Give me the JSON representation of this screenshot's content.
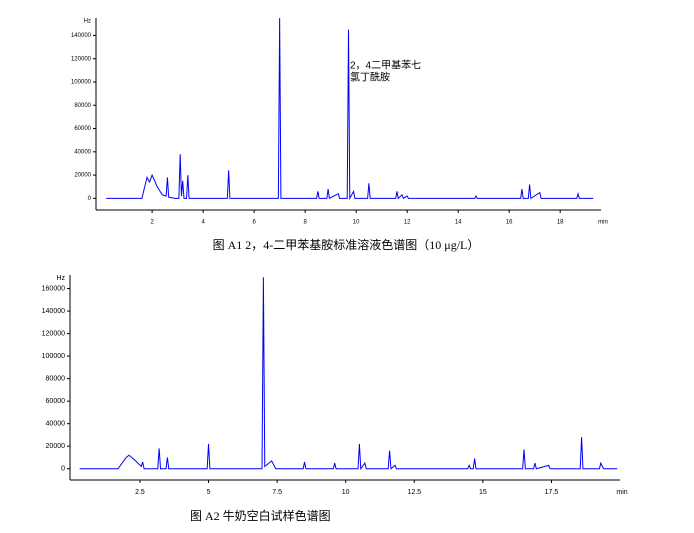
{
  "chart_data": [
    {
      "type": "line",
      "y_label": "Hz",
      "x_label": "min",
      "caption": "图 A1 2，4-二甲苯基胺标准溶液色谱图（10 μg/L）",
      "annotation": [
        "2，4二甲基苯七",
        "氯丁酰胺"
      ],
      "xlim": [
        -0.2,
        19.6
      ],
      "ylim": [
        -10000,
        155000
      ],
      "xticks": [
        2,
        4,
        6,
        8,
        10,
        12,
        14,
        16,
        18
      ],
      "yticks": [
        0,
        20000,
        40000,
        60000,
        80000,
        100000,
        120000,
        140000
      ],
      "x": [
        0.2,
        1.6,
        1.8,
        1.9,
        2.0,
        2.2,
        2.4,
        2.55,
        2.6,
        2.65,
        2.9,
        3.05,
        3.1,
        3.15,
        3.2,
        3.25,
        3.35,
        3.4,
        3.45,
        4.95,
        5.0,
        5.05,
        6.95,
        7.0,
        7.05,
        8.45,
        8.5,
        8.55,
        8.85,
        8.9,
        8.95,
        9.3,
        9.35,
        9.65,
        9.7,
        9.75,
        9.9,
        9.95,
        10.45,
        10.5,
        10.55,
        11.55,
        11.6,
        11.65,
        11.8,
        11.85,
        12.0,
        12.05,
        14.65,
        14.7,
        14.75,
        16.45,
        16.5,
        16.55,
        16.75,
        16.8,
        16.85,
        17.2,
        17.25,
        18.65,
        18.7,
        18.75,
        19.3
      ],
      "series": [
        {
          "color": "#0000ff",
          "values": [
            0,
            0,
            18000,
            14000,
            20000,
            10000,
            3000,
            2000,
            18000,
            1000,
            0,
            0,
            38000,
            2000,
            15000,
            0,
            0,
            20000,
            0,
            0,
            24000,
            0,
            0,
            155000,
            0,
            0,
            6000,
            0,
            0,
            8000,
            0,
            4000,
            0,
            0,
            145000,
            0,
            6000,
            0,
            0,
            13000,
            0,
            0,
            6000,
            0,
            3000,
            0,
            2000,
            0,
            0,
            2000,
            0,
            0,
            8000,
            0,
            0,
            12000,
            0,
            5000,
            0,
            0,
            4000,
            0,
            0
          ]
        }
      ]
    },
    {
      "type": "line",
      "y_label": "Hz",
      "x_label": "min",
      "caption": "图 A2 牛奶空白试样色谱图",
      "xlim": [
        -0.05,
        20
      ],
      "ylim": [
        -10000,
        172000
      ],
      "xticks": [
        2.5,
        5,
        7.5,
        10,
        12.5,
        15,
        17.5
      ],
      "yticks": [
        0,
        20000,
        40000,
        60000,
        80000,
        100000,
        120000,
        140000,
        160000
      ],
      "x": [
        0.3,
        1.7,
        2.0,
        2.1,
        2.3,
        2.55,
        2.6,
        2.65,
        3.15,
        3.2,
        3.25,
        3.45,
        3.5,
        3.55,
        4.95,
        5.0,
        5.05,
        6.95,
        7.0,
        7.05,
        7.3,
        7.45,
        8.45,
        8.5,
        8.55,
        9.55,
        9.6,
        9.65,
        10.45,
        10.5,
        10.55,
        10.7,
        10.75,
        11.55,
        11.6,
        11.65,
        11.8,
        11.85,
        14.45,
        14.5,
        14.55,
        14.65,
        14.7,
        14.75,
        16.45,
        16.5,
        16.55,
        16.85,
        16.9,
        16.95,
        17.4,
        17.45,
        18.55,
        18.6,
        18.65,
        19.25,
        19.3,
        19.4,
        19.9
      ],
      "series": [
        {
          "color": "#0000ff",
          "values": [
            0,
            0,
            10000,
            12000,
            8000,
            2000,
            6000,
            0,
            0,
            18000,
            0,
            0,
            10000,
            0,
            0,
            22000,
            0,
            0,
            170000,
            2000,
            7000,
            0,
            0,
            6000,
            0,
            0,
            5000,
            0,
            0,
            22000,
            0,
            5000,
            0,
            0,
            16000,
            0,
            3000,
            0,
            0,
            3000,
            0,
            0,
            9000,
            0,
            0,
            17000,
            0,
            0,
            5000,
            0,
            3000,
            0,
            0,
            28000,
            0,
            0,
            5000,
            0,
            0
          ]
        }
      ]
    }
  ]
}
